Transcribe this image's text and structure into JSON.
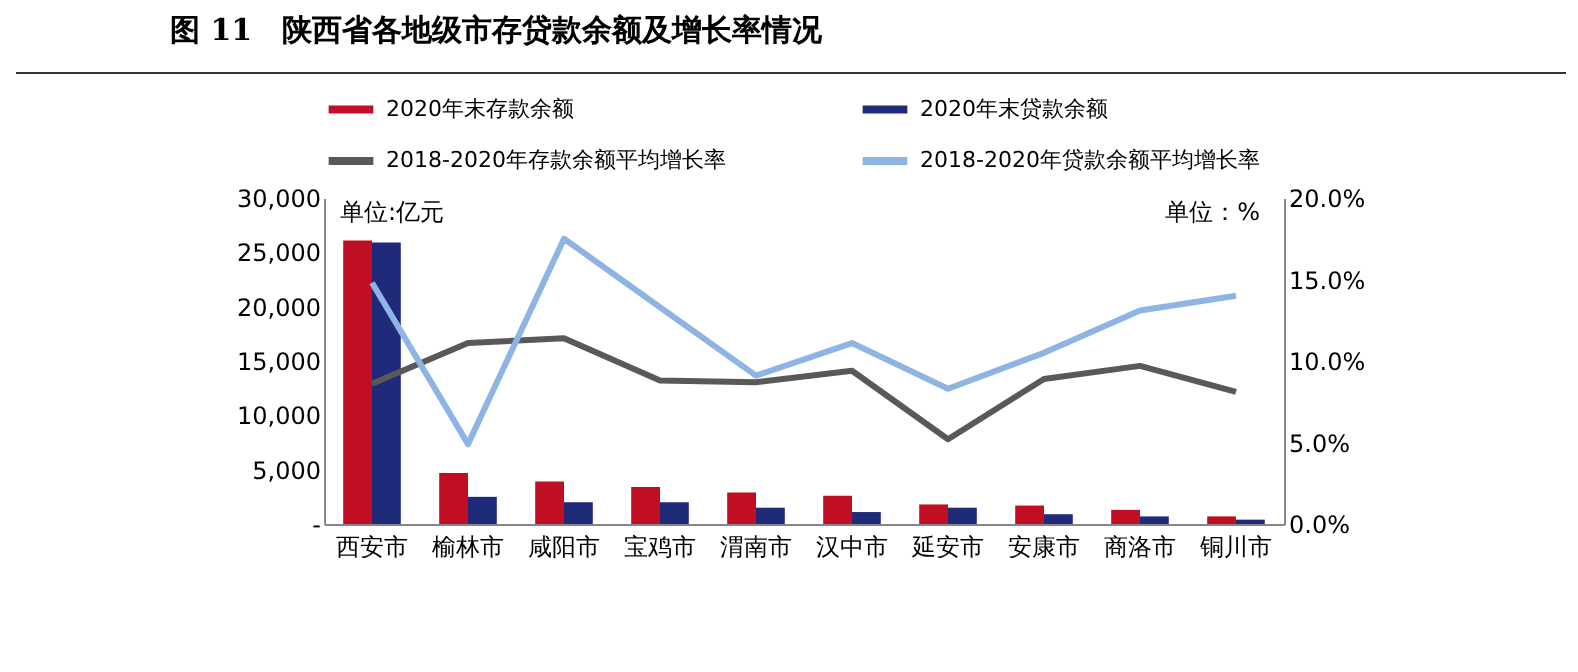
{
  "chart_data": {
    "type": "bar",
    "title": "图 11　陕西省各地级市存贷款余额及增长率情况",
    "categories": [
      "西安市",
      "榆林市",
      "咸阳市",
      "宝鸡市",
      "渭南市",
      "汉中市",
      "延安市",
      "安康市",
      "商洛市",
      "铜川市"
    ],
    "series": [
      {
        "name": "2020年末存款余额",
        "color": "#c00f23",
        "values": [
          26100,
          4700,
          3900,
          3400,
          2900,
          2600,
          1800,
          1700,
          1300,
          700
        ]
      },
      {
        "name": "2020年末贷款余额",
        "color": "#1f2a7a",
        "values": [
          25900,
          2500,
          2000,
          2000,
          1500,
          1100,
          1500,
          900,
          700,
          400
        ]
      },
      {
        "name": "2018-2020年存款余额平均增长率",
        "type": "line",
        "axis": "y2",
        "color": "#595959",
        "values": [
          8.6,
          11.1,
          11.4,
          8.8,
          8.7,
          9.4,
          5.2,
          8.9,
          9.7,
          8.1
        ]
      },
      {
        "name": "2018-2020年贷款余额平均增长率",
        "type": "line",
        "axis": "y2",
        "color": "#8db4e2",
        "values": [
          14.8,
          4.9,
          17.5,
          13.3,
          9.1,
          11.1,
          8.3,
          10.5,
          13.1,
          14.0
        ]
      }
    ],
    "ylim": [
      0,
      30000
    ],
    "yticks": [
      {
        "value": 0,
        "label": "-"
      },
      {
        "value": 5000,
        "label": "5,000"
      },
      {
        "value": 10000,
        "label": "10,000"
      },
      {
        "value": 15000,
        "label": "15,000"
      },
      {
        "value": 20000,
        "label": "20,000"
      },
      {
        "value": 25000,
        "label": "25,000"
      },
      {
        "value": 30000,
        "label": "30,000"
      }
    ],
    "y2lim": [
      0,
      20
    ],
    "y2ticks": [
      {
        "value": 0,
        "label": "0.0%"
      },
      {
        "value": 5,
        "label": "5.0%"
      },
      {
        "value": 10,
        "label": "10.0%"
      },
      {
        "value": 15,
        "label": "15.0%"
      },
      {
        "value": 20,
        "label": "20.0%"
      }
    ],
    "annotations": [
      "单位:亿元",
      "单位：%"
    ],
    "grid": false,
    "legend": "top",
    "marker": "none"
  }
}
